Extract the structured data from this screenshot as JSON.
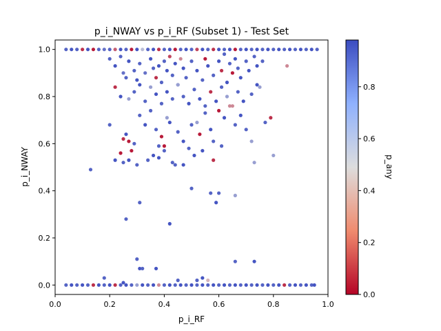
{
  "chart_data": {
    "type": "scatter",
    "title": "p_i_NWAY vs p_i_RF (Subset 1) - Test Set",
    "xlabel": "p_i_RF",
    "ylabel": "p_i_NWAY",
    "xlim": [
      0.0,
      1.0
    ],
    "ylim": [
      -0.04,
      1.04
    ],
    "xticks": [
      0.0,
      0.2,
      0.4,
      0.6,
      0.8,
      1.0
    ],
    "xtick_labels": [
      "0.0",
      "0.2",
      "0.4",
      "0.6",
      "0.8",
      "1.0"
    ],
    "yticks": [
      0.0,
      0.2,
      0.4,
      0.6,
      0.8,
      1.0
    ],
    "ytick_labels": [
      "0.0",
      "0.2",
      "0.4",
      "0.6",
      "0.8",
      "1.0"
    ],
    "grid": false,
    "colormap": "coolwarm_r",
    "colorbar": {
      "label": "p_any",
      "range": [
        0.0,
        0.98
      ],
      "ticks": [
        0.0,
        0.2,
        0.4,
        0.6,
        0.8
      ],
      "tick_labels": [
        "0.0",
        "0.2",
        "0.4",
        "0.6",
        "0.8"
      ]
    },
    "colors": {
      "low": "#b40426",
      "mid": "#dddddd",
      "high": "#3b4cc0"
    },
    "points": [
      [
        0.04,
        1.0,
        0.9
      ],
      [
        0.06,
        1.0,
        0.95
      ],
      [
        0.08,
        1.0,
        0.9
      ],
      [
        0.1,
        1.0,
        0.1
      ],
      [
        0.12,
        1.0,
        0.95
      ],
      [
        0.14,
        1.0,
        0.05
      ],
      [
        0.16,
        1.0,
        0.9
      ],
      [
        0.18,
        1.0,
        0.85
      ],
      [
        0.2,
        1.0,
        0.9
      ],
      [
        0.22,
        1.0,
        0.2
      ],
      [
        0.24,
        1.0,
        0.95
      ],
      [
        0.26,
        1.0,
        0.9
      ],
      [
        0.28,
        1.0,
        0.05
      ],
      [
        0.3,
        1.0,
        0.95
      ],
      [
        0.32,
        1.0,
        0.6
      ],
      [
        0.34,
        1.0,
        0.9
      ],
      [
        0.36,
        1.0,
        0.95
      ],
      [
        0.38,
        1.0,
        0.1
      ],
      [
        0.4,
        1.0,
        0.9
      ],
      [
        0.42,
        1.0,
        0.95
      ],
      [
        0.44,
        1.0,
        0.05
      ],
      [
        0.46,
        1.0,
        0.9
      ],
      [
        0.48,
        1.0,
        0.95
      ],
      [
        0.5,
        1.0,
        0.9
      ],
      [
        0.52,
        1.0,
        0.15
      ],
      [
        0.54,
        1.0,
        0.95
      ],
      [
        0.56,
        1.0,
        0.9
      ],
      [
        0.58,
        1.0,
        0.1
      ],
      [
        0.6,
        1.0,
        0.95
      ],
      [
        0.62,
        1.0,
        0.9
      ],
      [
        0.64,
        1.0,
        0.95
      ],
      [
        0.66,
        1.0,
        0.05
      ],
      [
        0.68,
        1.0,
        0.9
      ],
      [
        0.7,
        1.0,
        0.95
      ],
      [
        0.72,
        1.0,
        0.9
      ],
      [
        0.74,
        1.0,
        0.95
      ],
      [
        0.76,
        1.0,
        0.9
      ],
      [
        0.78,
        1.0,
        0.95
      ],
      [
        0.8,
        1.0,
        0.9
      ],
      [
        0.82,
        1.0,
        0.95
      ],
      [
        0.84,
        1.0,
        0.9
      ],
      [
        0.86,
        1.0,
        0.95
      ],
      [
        0.88,
        1.0,
        0.9
      ],
      [
        0.9,
        1.0,
        0.95
      ],
      [
        0.92,
        1.0,
        0.9
      ],
      [
        0.94,
        1.0,
        0.95
      ],
      [
        0.96,
        1.0,
        0.9
      ],
      [
        0.2,
        0.96,
        0.9
      ],
      [
        0.22,
        0.93,
        0.95
      ],
      [
        0.24,
        0.97,
        0.9
      ],
      [
        0.25,
        0.9,
        0.85
      ],
      [
        0.26,
        0.88,
        0.9
      ],
      [
        0.27,
        0.95,
        0.95
      ],
      [
        0.29,
        0.91,
        0.9
      ],
      [
        0.3,
        0.87,
        0.95
      ],
      [
        0.31,
        0.94,
        0.9
      ],
      [
        0.33,
        0.9,
        0.85
      ],
      [
        0.35,
        0.96,
        0.95
      ],
      [
        0.36,
        0.92,
        0.9
      ],
      [
        0.37,
        0.88,
        0.1
      ],
      [
        0.38,
        0.93,
        0.95
      ],
      [
        0.39,
        0.86,
        0.9
      ],
      [
        0.4,
        0.95,
        0.9
      ],
      [
        0.41,
        0.91,
        0.95
      ],
      [
        0.42,
        0.97,
        0.15
      ],
      [
        0.43,
        0.89,
        0.9
      ],
      [
        0.44,
        0.94,
        0.95
      ],
      [
        0.45,
        0.85,
        0.9
      ],
      [
        0.46,
        0.96,
        0.3
      ],
      [
        0.47,
        0.92,
        0.95
      ],
      [
        0.48,
        0.88,
        0.9
      ],
      [
        0.5,
        0.95,
        0.9
      ],
      [
        0.52,
        0.91,
        0.95
      ],
      [
        0.54,
        0.87,
        0.9
      ],
      [
        0.55,
        0.96,
        0.05
      ],
      [
        0.56,
        0.93,
        0.95
      ],
      [
        0.58,
        0.89,
        0.9
      ],
      [
        0.6,
        0.95,
        0.95
      ],
      [
        0.61,
        0.91,
        0.1
      ],
      [
        0.62,
        0.98,
        0.9
      ],
      [
        0.63,
        0.86,
        0.95
      ],
      [
        0.64,
        0.94,
        0.9
      ],
      [
        0.65,
        0.9,
        0.05
      ],
      [
        0.66,
        0.96,
        0.95
      ],
      [
        0.67,
        0.92,
        0.9
      ],
      [
        0.68,
        0.88,
        0.95
      ],
      [
        0.7,
        0.95,
        0.9
      ],
      [
        0.71,
        0.91,
        0.95
      ],
      [
        0.73,
        0.97,
        0.9
      ],
      [
        0.74,
        0.93,
        0.95
      ],
      [
        0.76,
        0.95,
        0.9
      ],
      [
        0.85,
        0.93,
        0.3
      ],
      [
        0.22,
        0.84,
        0.1
      ],
      [
        0.24,
        0.8,
        0.95
      ],
      [
        0.27,
        0.79,
        0.7
      ],
      [
        0.29,
        0.82,
        0.9
      ],
      [
        0.31,
        0.85,
        0.95
      ],
      [
        0.33,
        0.78,
        0.9
      ],
      [
        0.35,
        0.84,
        0.7
      ],
      [
        0.37,
        0.81,
        0.95
      ],
      [
        0.39,
        0.77,
        0.9
      ],
      [
        0.41,
        0.82,
        0.95
      ],
      [
        0.43,
        0.79,
        0.9
      ],
      [
        0.45,
        0.85,
        0.7
      ],
      [
        0.47,
        0.8,
        0.9
      ],
      [
        0.49,
        0.77,
        0.95
      ],
      [
        0.51,
        0.83,
        0.9
      ],
      [
        0.53,
        0.79,
        0.95
      ],
      [
        0.55,
        0.76,
        0.9
      ],
      [
        0.57,
        0.82,
        0.1
      ],
      [
        0.59,
        0.78,
        0.95
      ],
      [
        0.61,
        0.84,
        0.9
      ],
      [
        0.63,
        0.8,
        0.7
      ],
      [
        0.65,
        0.76,
        0.3
      ],
      [
        0.67,
        0.82,
        0.9
      ],
      [
        0.69,
        0.78,
        0.95
      ],
      [
        0.72,
        0.81,
        0.9
      ],
      [
        0.74,
        0.85,
        0.95
      ],
      [
        0.75,
        0.84,
        0.7
      ],
      [
        0.25,
        0.62,
        0.1
      ],
      [
        0.26,
        0.64,
        0.95
      ],
      [
        0.27,
        0.61,
        0.05
      ],
      [
        0.28,
        0.57,
        0.05
      ],
      [
        0.29,
        0.6,
        0.9
      ],
      [
        0.31,
        0.72,
        0.9
      ],
      [
        0.33,
        0.68,
        0.95
      ],
      [
        0.35,
        0.74,
        0.9
      ],
      [
        0.36,
        0.55,
        0.95
      ],
      [
        0.37,
        0.66,
        0.9
      ],
      [
        0.38,
        0.59,
        0.9
      ],
      [
        0.39,
        0.63,
        0.05
      ],
      [
        0.4,
        0.57,
        0.9
      ],
      [
        0.41,
        0.71,
        0.7
      ],
      [
        0.42,
        0.69,
        0.95
      ],
      [
        0.43,
        0.52,
        0.9
      ],
      [
        0.45,
        0.65,
        0.9
      ],
      [
        0.47,
        0.61,
        0.95
      ],
      [
        0.49,
        0.58,
        0.9
      ],
      [
        0.5,
        0.68,
        0.9
      ],
      [
        0.51,
        0.55,
        0.95
      ],
      [
        0.52,
        0.69,
        0.7
      ],
      [
        0.53,
        0.64,
        0.05
      ],
      [
        0.54,
        0.57,
        0.95
      ],
      [
        0.55,
        0.73,
        0.9
      ],
      [
        0.57,
        0.66,
        0.95
      ],
      [
        0.58,
        0.61,
        0.9
      ],
      [
        0.6,
        0.74,
        0.05
      ],
      [
        0.61,
        0.59,
        0.9
      ],
      [
        0.62,
        0.71,
        0.95
      ],
      [
        0.64,
        0.76,
        0.3
      ],
      [
        0.66,
        0.68,
        0.9
      ],
      [
        0.68,
        0.72,
        0.95
      ],
      [
        0.7,
        0.66,
        0.9
      ],
      [
        0.72,
        0.61,
        0.7
      ],
      [
        0.73,
        0.52,
        0.7
      ],
      [
        0.8,
        0.55,
        0.7
      ],
      [
        0.2,
        0.68,
        0.9
      ],
      [
        0.22,
        0.53,
        0.95
      ],
      [
        0.24,
        0.56,
        0.05
      ],
      [
        0.25,
        0.52,
        0.9
      ],
      [
        0.27,
        0.53,
        0.95
      ],
      [
        0.3,
        0.51,
        0.9
      ],
      [
        0.34,
        0.53,
        0.9
      ],
      [
        0.38,
        0.54,
        0.95
      ],
      [
        0.4,
        0.59,
        0.05
      ],
      [
        0.44,
        0.51,
        0.9
      ],
      [
        0.47,
        0.51,
        0.95
      ],
      [
        0.58,
        0.53,
        0.1
      ],
      [
        0.77,
        0.69,
        0.9
      ],
      [
        0.79,
        0.71,
        0.1
      ],
      [
        0.13,
        0.49,
        0.9
      ],
      [
        0.5,
        0.41,
        0.9
      ],
      [
        0.57,
        0.39,
        0.9
      ],
      [
        0.59,
        0.35,
        0.95
      ],
      [
        0.6,
        0.39,
        0.9
      ],
      [
        0.66,
        0.38,
        0.7
      ],
      [
        0.31,
        0.35,
        0.9
      ],
      [
        0.26,
        0.28,
        0.9
      ],
      [
        0.42,
        0.26,
        0.95
      ],
      [
        0.3,
        0.11,
        0.9
      ],
      [
        0.31,
        0.07,
        0.95
      ],
      [
        0.32,
        0.07,
        0.9
      ],
      [
        0.37,
        0.07,
        0.95
      ],
      [
        0.66,
        0.1,
        0.9
      ],
      [
        0.73,
        0.1,
        0.95
      ],
      [
        0.18,
        0.03,
        0.9
      ],
      [
        0.25,
        0.01,
        0.95
      ],
      [
        0.45,
        0.02,
        0.9
      ],
      [
        0.52,
        0.02,
        0.9
      ],
      [
        0.54,
        0.03,
        0.95
      ],
      [
        0.56,
        0.02,
        0.4
      ],
      [
        0.04,
        0.0,
        0.9
      ],
      [
        0.06,
        0.0,
        0.95
      ],
      [
        0.08,
        0.0,
        0.9
      ],
      [
        0.1,
        0.0,
        0.95
      ],
      [
        0.12,
        0.0,
        0.9
      ],
      [
        0.14,
        0.0,
        0.1
      ],
      [
        0.16,
        0.0,
        0.95
      ],
      [
        0.18,
        0.0,
        0.9
      ],
      [
        0.2,
        0.0,
        0.95
      ],
      [
        0.22,
        0.0,
        0.1
      ],
      [
        0.24,
        0.0,
        0.9
      ],
      [
        0.26,
        0.0,
        0.95
      ],
      [
        0.28,
        0.0,
        0.9
      ],
      [
        0.3,
        0.0,
        0.7
      ],
      [
        0.32,
        0.0,
        0.95
      ],
      [
        0.34,
        0.0,
        0.9
      ],
      [
        0.36,
        0.0,
        0.95
      ],
      [
        0.38,
        0.0,
        0.3
      ],
      [
        0.4,
        0.0,
        0.9
      ],
      [
        0.42,
        0.0,
        0.95
      ],
      [
        0.44,
        0.0,
        0.9
      ],
      [
        0.46,
        0.0,
        0.95
      ],
      [
        0.48,
        0.0,
        0.9
      ],
      [
        0.5,
        0.0,
        0.95
      ],
      [
        0.52,
        0.0,
        0.9
      ],
      [
        0.54,
        0.0,
        0.95
      ],
      [
        0.56,
        0.0,
        0.9
      ],
      [
        0.58,
        0.0,
        0.95
      ],
      [
        0.6,
        0.0,
        0.9
      ],
      [
        0.62,
        0.0,
        0.95
      ],
      [
        0.64,
        0.0,
        0.9
      ],
      [
        0.66,
        0.0,
        0.95
      ],
      [
        0.68,
        0.0,
        0.9
      ],
      [
        0.7,
        0.0,
        0.95
      ],
      [
        0.72,
        0.0,
        0.9
      ],
      [
        0.74,
        0.0,
        0.95
      ],
      [
        0.76,
        0.0,
        0.9
      ],
      [
        0.78,
        0.0,
        0.95
      ],
      [
        0.8,
        0.0,
        0.9
      ],
      [
        0.82,
        0.0,
        0.95
      ],
      [
        0.84,
        0.0,
        0.1
      ],
      [
        0.86,
        0.0,
        0.9
      ],
      [
        0.88,
        0.0,
        0.95
      ],
      [
        0.9,
        0.0,
        0.9
      ],
      [
        0.92,
        0.0,
        0.95
      ],
      [
        0.94,
        0.0,
        0.9
      ],
      [
        0.95,
        0.0,
        0.95
      ]
    ]
  }
}
